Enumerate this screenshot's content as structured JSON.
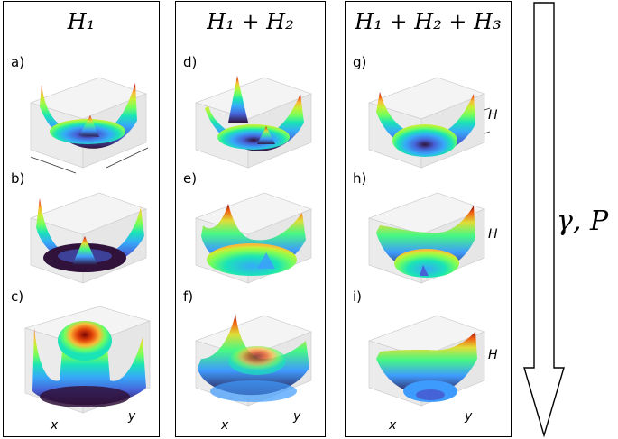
{
  "columns": [
    {
      "title": "H₁",
      "panels": [
        {
          "label": "a)"
        },
        {
          "label": "b)"
        },
        {
          "label": "c)"
        }
      ]
    },
    {
      "title": "H₁ + H₂",
      "panels": [
        {
          "label": "d)"
        },
        {
          "label": "e)"
        },
        {
          "label": "f)"
        }
      ]
    },
    {
      "title": "H₁ + H₂ + H₃",
      "panels": [
        {
          "label": "g)"
        },
        {
          "label": "h)"
        },
        {
          "label": "i)"
        }
      ]
    }
  ],
  "axes": {
    "x": "x",
    "y": "y",
    "z": "H"
  },
  "arrow": {
    "label": "γ, P"
  },
  "colors": {
    "low": "#30123b",
    "mid_low": "#3e9bfe",
    "mid": "#46f884",
    "mid_high": "#e1dd37",
    "high": "#7a0403"
  }
}
